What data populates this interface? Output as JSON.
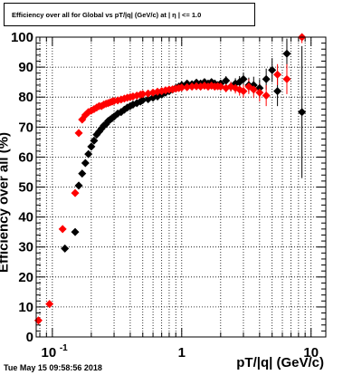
{
  "chart_data": {
    "type": "scatter",
    "title": "Efficiency over all for Global vs pT/|q| (GeV/c) at | η | <= 1.0",
    "xlabel": "pT/|q| (GeV/c)",
    "ylabel": "Efficiency over all (%)",
    "x_scale": "log",
    "xlim": [
      0.075,
      13
    ],
    "ylim": [
      0,
      100
    ],
    "grid": true,
    "x_tick_labels": [
      {
        "value": 0.1,
        "label": "10",
        "exp": "-1"
      },
      {
        "value": 1,
        "label": "1",
        "exp": ""
      },
      {
        "value": 10,
        "label": "10",
        "exp": ""
      }
    ],
    "y_ticks": [
      0,
      10,
      20,
      30,
      40,
      50,
      60,
      70,
      80,
      90,
      100
    ],
    "series": [
      {
        "color": "#000000",
        "marker": "diamond",
        "points": [
          [
            0.125,
            29.5,
            1.2
          ],
          [
            0.15,
            35.0,
            1.2
          ],
          [
            0.16,
            50.5,
            1.0
          ],
          [
            0.17,
            54.5,
            1.0
          ],
          [
            0.18,
            58.0,
            0.9
          ],
          [
            0.19,
            61.0,
            0.9
          ],
          [
            0.2,
            63.5,
            0.8
          ],
          [
            0.21,
            65.5,
            0.8
          ],
          [
            0.22,
            67.5,
            0.8
          ],
          [
            0.23,
            68.5,
            0.7
          ],
          [
            0.24,
            69.5,
            0.7
          ],
          [
            0.25,
            70.5,
            0.7
          ],
          [
            0.26,
            71.0,
            0.7
          ],
          [
            0.27,
            72.0,
            0.7
          ],
          [
            0.28,
            72.5,
            0.7
          ],
          [
            0.29,
            73.0,
            0.7
          ],
          [
            0.3,
            73.5,
            0.6
          ],
          [
            0.32,
            74.5,
            0.6
          ],
          [
            0.34,
            75.0,
            0.6
          ],
          [
            0.36,
            75.8,
            0.6
          ],
          [
            0.38,
            76.5,
            0.6
          ],
          [
            0.4,
            77.0,
            0.6
          ],
          [
            0.42,
            77.5,
            0.6
          ],
          [
            0.45,
            78.0,
            0.6
          ],
          [
            0.48,
            78.5,
            0.6
          ],
          [
            0.5,
            79.0,
            0.6
          ],
          [
            0.55,
            79.3,
            0.6
          ],
          [
            0.6,
            79.8,
            0.6
          ],
          [
            0.65,
            80.2,
            0.6
          ],
          [
            0.7,
            80.8,
            0.6
          ],
          [
            0.75,
            81.5,
            0.6
          ],
          [
            0.8,
            82.0,
            0.7
          ],
          [
            0.85,
            82.5,
            0.7
          ],
          [
            0.9,
            83.0,
            0.7
          ],
          [
            0.95,
            83.5,
            0.7
          ],
          [
            1.0,
            84.0,
            0.7
          ],
          [
            1.1,
            84.5,
            0.8
          ],
          [
            1.2,
            84.3,
            0.8
          ],
          [
            1.3,
            84.8,
            0.9
          ],
          [
            1.4,
            84.5,
            0.9
          ],
          [
            1.5,
            85.0,
            1.0
          ],
          [
            1.6,
            84.5,
            1.0
          ],
          [
            1.7,
            85.0,
            1.1
          ],
          [
            1.8,
            84.5,
            1.2
          ],
          [
            1.9,
            84.0,
            1.2
          ],
          [
            2.0,
            84.5,
            1.3
          ],
          [
            2.2,
            85.5,
            1.5
          ],
          [
            2.4,
            83.5,
            1.6
          ],
          [
            2.6,
            84.5,
            1.8
          ],
          [
            2.8,
            85.0,
            2.0
          ],
          [
            3.0,
            86.0,
            2.2
          ],
          [
            3.3,
            84.0,
            2.5
          ],
          [
            3.6,
            84.0,
            2.8
          ],
          [
            4.0,
            83.0,
            3.0
          ],
          [
            4.5,
            86.0,
            3.5
          ],
          [
            5.0,
            89.0,
            4.0
          ],
          [
            5.5,
            82.0,
            5.0
          ],
          [
            6.5,
            94.5,
            5.0
          ],
          [
            8.5,
            75.0,
            22.0
          ]
        ]
      },
      {
        "color": "#ff0000",
        "marker": "diamond",
        "points": [
          [
            0.078,
            5.5,
            1.0
          ],
          [
            0.095,
            11.0,
            1.2
          ],
          [
            0.12,
            36.0,
            1.2
          ],
          [
            0.15,
            48.0,
            1.0
          ],
          [
            0.16,
            68.0,
            1.0
          ],
          [
            0.17,
            72.5,
            0.9
          ],
          [
            0.18,
            74.0,
            0.8
          ],
          [
            0.19,
            75.0,
            0.8
          ],
          [
            0.2,
            75.5,
            0.7
          ],
          [
            0.21,
            76.0,
            0.7
          ],
          [
            0.22,
            76.5,
            0.7
          ],
          [
            0.23,
            77.0,
            0.7
          ],
          [
            0.24,
            77.0,
            0.7
          ],
          [
            0.25,
            77.5,
            0.6
          ],
          [
            0.26,
            77.8,
            0.6
          ],
          [
            0.27,
            78.0,
            0.6
          ],
          [
            0.28,
            78.3,
            0.6
          ],
          [
            0.29,
            78.5,
            0.6
          ],
          [
            0.3,
            78.7,
            0.6
          ],
          [
            0.32,
            78.9,
            0.6
          ],
          [
            0.34,
            79.2,
            0.6
          ],
          [
            0.36,
            79.5,
            0.6
          ],
          [
            0.38,
            79.8,
            0.6
          ],
          [
            0.4,
            80.0,
            0.6
          ],
          [
            0.42,
            80.2,
            0.6
          ],
          [
            0.45,
            80.5,
            0.6
          ],
          [
            0.48,
            80.8,
            0.6
          ],
          [
            0.5,
            81.0,
            0.6
          ],
          [
            0.55,
            81.2,
            0.6
          ],
          [
            0.6,
            81.5,
            0.6
          ],
          [
            0.65,
            81.8,
            0.6
          ],
          [
            0.7,
            82.0,
            0.6
          ],
          [
            0.75,
            82.3,
            0.6
          ],
          [
            0.8,
            82.5,
            0.7
          ],
          [
            0.85,
            82.6,
            0.7
          ],
          [
            0.9,
            82.8,
            0.7
          ],
          [
            0.95,
            83.0,
            0.7
          ],
          [
            1.0,
            83.2,
            0.7
          ],
          [
            1.1,
            83.3,
            0.8
          ],
          [
            1.2,
            83.5,
            0.8
          ],
          [
            1.3,
            83.6,
            0.9
          ],
          [
            1.4,
            83.5,
            0.9
          ],
          [
            1.5,
            83.8,
            1.0
          ],
          [
            1.6,
            83.5,
            1.0
          ],
          [
            1.7,
            83.8,
            1.1
          ],
          [
            1.8,
            83.5,
            1.2
          ],
          [
            1.9,
            83.6,
            1.2
          ],
          [
            2.0,
            83.5,
            1.3
          ],
          [
            2.2,
            83.0,
            1.4
          ],
          [
            2.4,
            83.5,
            1.6
          ],
          [
            2.6,
            83.0,
            1.8
          ],
          [
            2.8,
            82.5,
            2.0
          ],
          [
            3.0,
            82.0,
            2.2
          ],
          [
            3.3,
            83.5,
            2.5
          ],
          [
            3.6,
            82.5,
            2.8
          ],
          [
            4.0,
            81.5,
            3.0
          ],
          [
            4.5,
            80.5,
            3.5
          ],
          [
            5.5,
            87.5,
            3.5
          ],
          [
            6.5,
            86.0,
            5.0
          ],
          [
            8.5,
            100.0,
            2.0
          ]
        ]
      }
    ]
  },
  "labels": {
    "title": "Efficiency over all for Global vs pT/|q| (GeV/c) at | η | <= 1.0",
    "xlabel": "pT/|q| (GeV/c)",
    "ylabel": "Efficiency over all (%)",
    "timestamp": "Tue May 15 09:58:56 2018"
  }
}
